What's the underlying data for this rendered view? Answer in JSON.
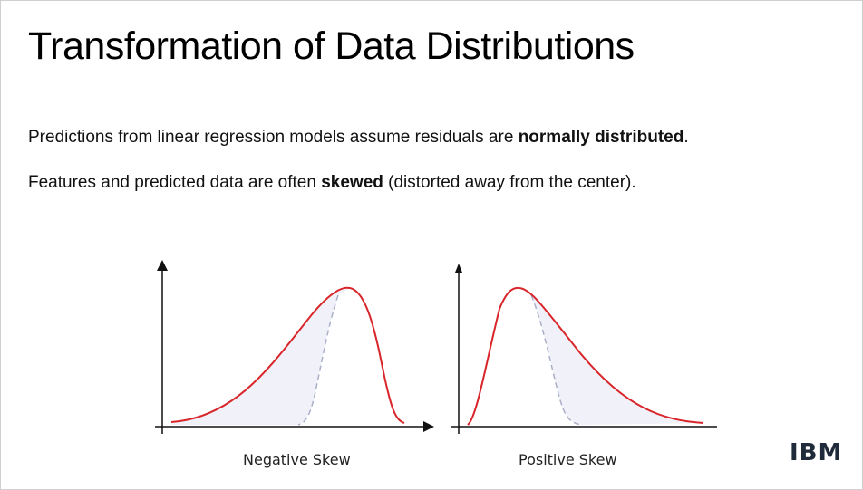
{
  "title": "Transformation of Data Distributions",
  "paragraphs": [
    {
      "before": "Predictions from linear regression models assume residuals are ",
      "bold": "normally distributed",
      "after": "."
    },
    {
      "before": "Features and predicted data are often ",
      "bold": "skewed",
      "after": " (distorted away from the center)."
    }
  ],
  "figures": [
    {
      "caption": "Negative Skew"
    },
    {
      "caption": "Positive Skew"
    }
  ],
  "logo": "IBM"
}
